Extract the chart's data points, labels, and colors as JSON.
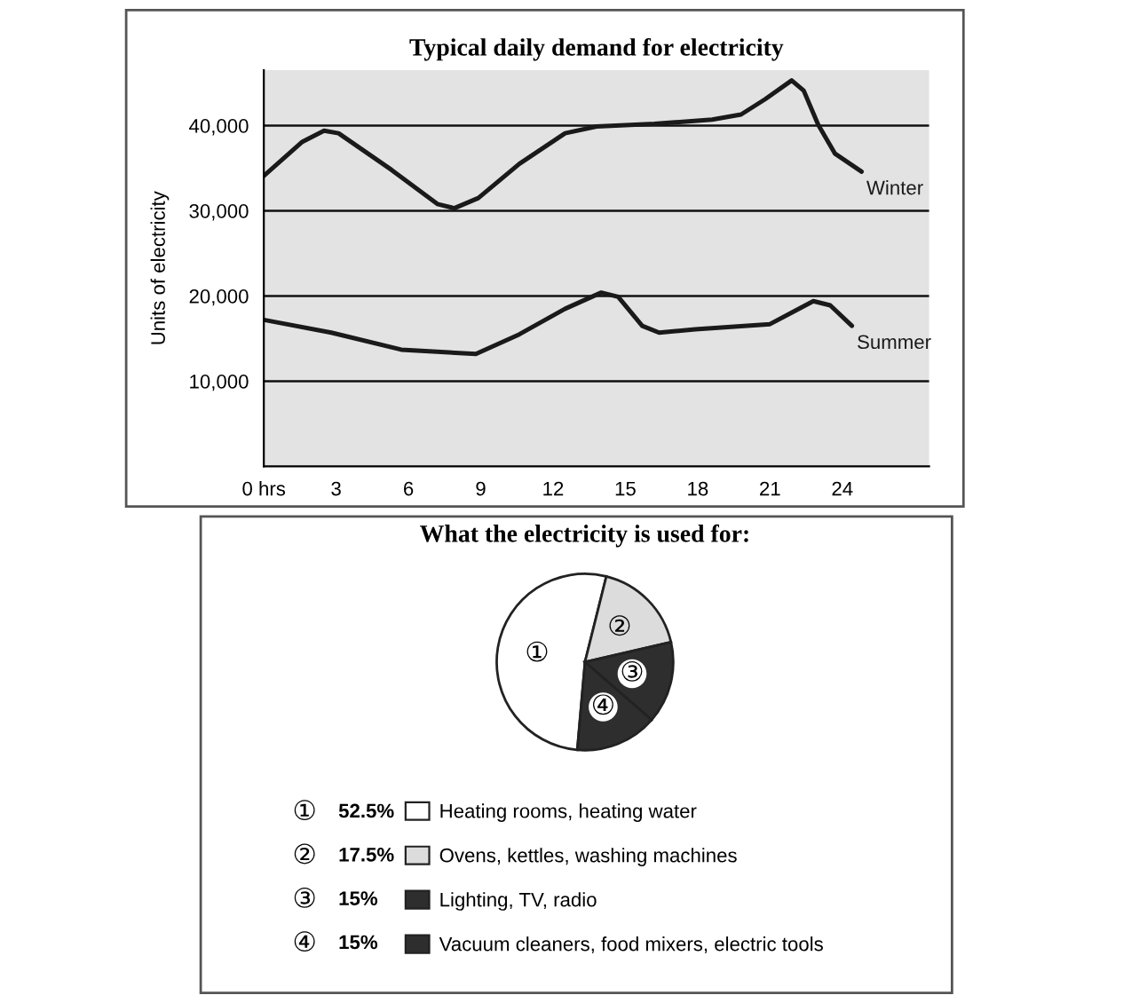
{
  "chart_data": [
    {
      "type": "line",
      "title": "Typical daily demand for electricity",
      "ylabel": "Units of electricity",
      "xlim": [
        0,
        27.6
      ],
      "ylim": [
        0,
        46500
      ],
      "xticks": [
        {
          "value": 0,
          "label": "0 hrs"
        },
        3,
        6,
        9,
        12,
        15,
        18,
        21,
        24
      ],
      "yticks": [
        {
          "value": 10000,
          "label": "10,000"
        },
        {
          "value": 20000,
          "label": "20,000"
        },
        {
          "value": 30000,
          "label": "30,000"
        },
        {
          "value": 40000,
          "label": "40,000"
        }
      ],
      "grid": "y",
      "legend": false,
      "series": [
        {
          "name": "Winter",
          "color": "#1a1a1a",
          "x": [
            0,
            1.6,
            2.5,
            3.1,
            5.3,
            7.2,
            7.9,
            8.9,
            10.6,
            12.5,
            13.8,
            16.2,
            18.6,
            19.8,
            20.8,
            21.9,
            22.4,
            23.0,
            23.7,
            24.8
          ],
          "values": [
            34100,
            38100,
            39400,
            39100,
            34800,
            30800,
            30300,
            31500,
            35500,
            39100,
            39900,
            40200,
            40700,
            41300,
            43100,
            45300,
            44100,
            40100,
            36700,
            34600
          ]
        },
        {
          "name": "Summer",
          "color": "#1a1a1a",
          "x": [
            0,
            2.8,
            5.7,
            8.8,
            10.6,
            12.5,
            14.0,
            14.7,
            15.7,
            16.4,
            17.9,
            21.0,
            22.0,
            22.8,
            23.5,
            24.4
          ],
          "values": [
            17200,
            15700,
            13700,
            13200,
            15500,
            18500,
            20400,
            19900,
            16500,
            15700,
            16100,
            16700,
            18200,
            19400,
            18900,
            16500
          ]
        }
      ]
    },
    {
      "type": "pie",
      "title": "What the electricity is used for:",
      "categories": [
        "Heating rooms, heating water",
        "Ovens, kettles, washing machines",
        "Lighting, TV, radio",
        "Vacuum cleaners, food mixers, electric tools"
      ],
      "values": [
        52.5,
        17.5,
        15,
        15
      ],
      "value_labels": [
        "52.5%",
        "17.5%",
        "15%",
        "15%"
      ],
      "colors": [
        "#ffffff",
        "#dcdcdc",
        "#2e2e2e",
        "#2e2e2e"
      ],
      "annotations": [
        "①",
        "②",
        "③",
        "④"
      ],
      "legend": "bottom"
    }
  ]
}
